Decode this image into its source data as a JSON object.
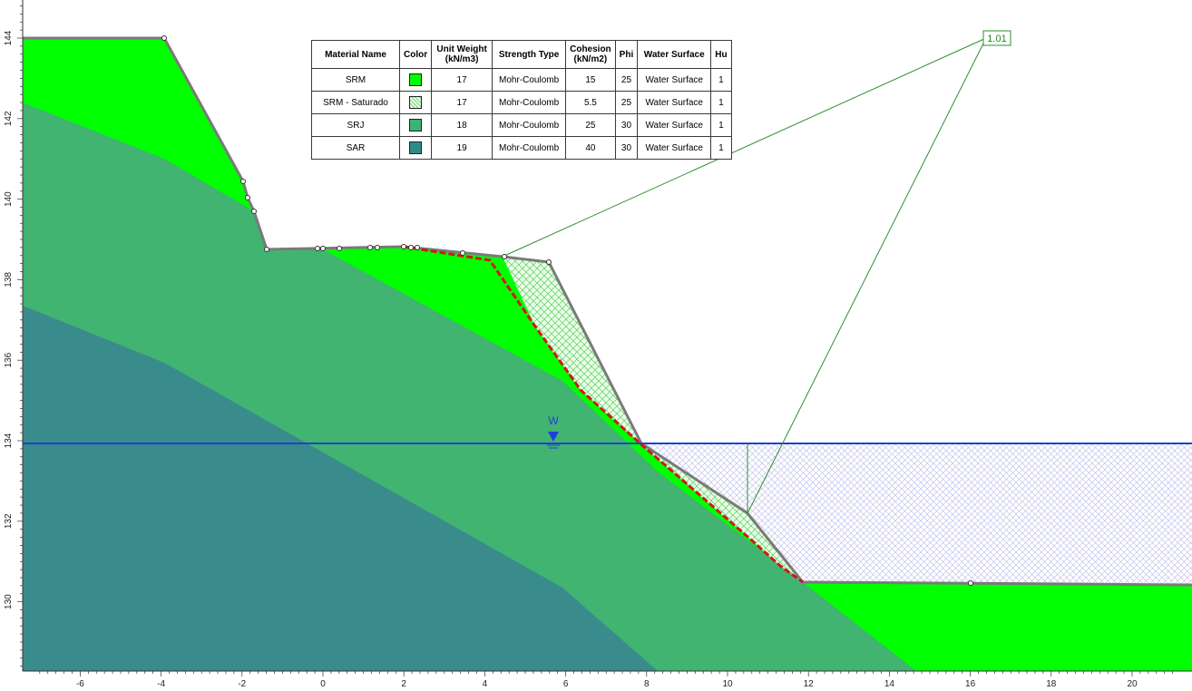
{
  "axes": {
    "x_ticks": [
      "-6",
      "-4",
      "-2",
      "0",
      "2",
      "4",
      "6",
      "8",
      "10",
      "12",
      "14",
      "16",
      "18",
      "20"
    ],
    "y_ticks": [
      "130",
      "132",
      "134",
      "136",
      "138",
      "140",
      "142",
      "144"
    ]
  },
  "table": {
    "headers": [
      "Material Name",
      "Color",
      "Unit Weight (kN/m3)",
      "Strength Type",
      "Cohesion (kN/m2)",
      "Phi",
      "Water Surface",
      "Hu"
    ],
    "rows": [
      {
        "name": "SRM",
        "color": "#00ff00",
        "swatch": "solid",
        "unit_weight": "17",
        "strength": "Mohr-Coulomb",
        "cohesion": "15",
        "phi": "25",
        "water": "Water Surface",
        "hu": "1"
      },
      {
        "name": "SRM - Saturado",
        "color": "#a8ffa8",
        "swatch": "hatch",
        "unit_weight": "17",
        "strength": "Mohr-Coulomb",
        "cohesion": "5.5",
        "phi": "25",
        "water": "Water Surface",
        "hu": "1"
      },
      {
        "name": "SRJ",
        "color": "#3cb371",
        "swatch": "solid",
        "unit_weight": "18",
        "strength": "Mohr-Coulomb",
        "cohesion": "25",
        "phi": "30",
        "water": "Water Surface",
        "hu": "1"
      },
      {
        "name": "SAR",
        "color": "#2e8b8b",
        "swatch": "solid",
        "unit_weight": "19",
        "strength": "Mohr-Coulomb",
        "cohesion": "40",
        "phi": "30",
        "water": "Water Surface",
        "hu": "1"
      }
    ]
  },
  "factor_of_safety": "1.01",
  "water_label": "W",
  "colors": {
    "srm": "#00ff00",
    "srj": "#40b470",
    "sar": "#3a8c8c",
    "water_line": "#1f3fd8",
    "slip_surface": "#d01818",
    "radius_lines": "#2f8f2f"
  }
}
